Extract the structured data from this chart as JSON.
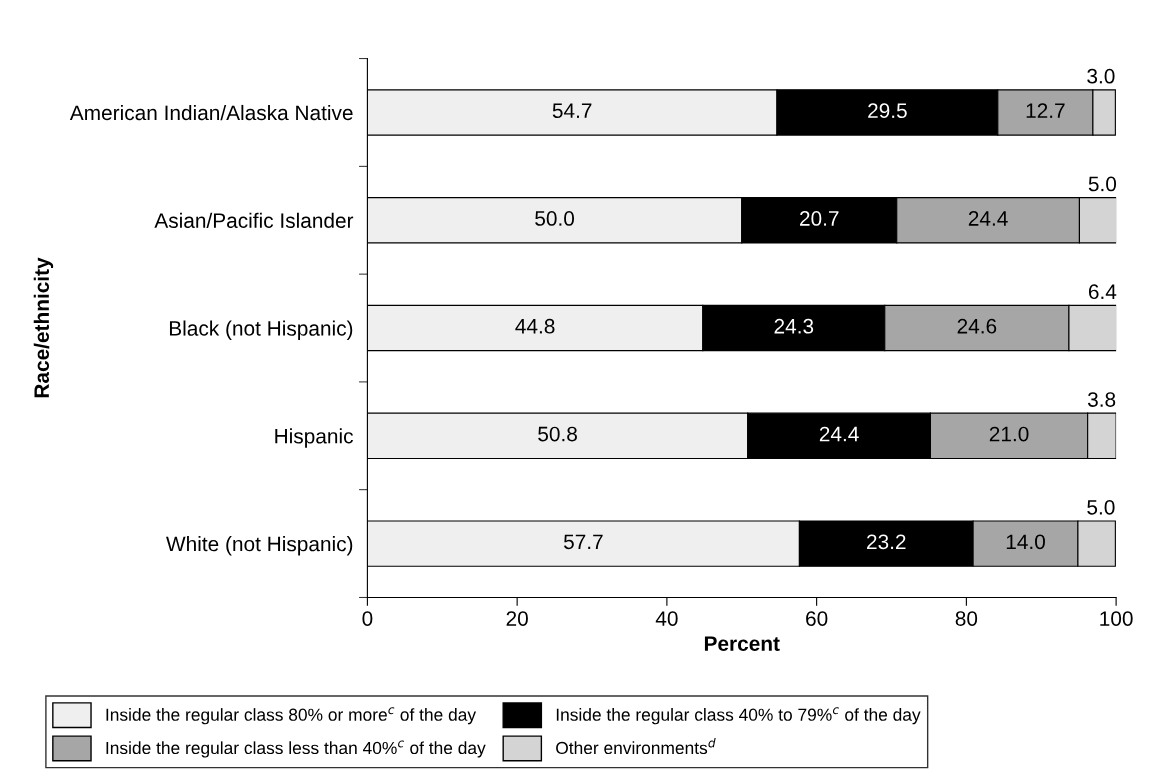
{
  "chart_data": {
    "type": "bar",
    "orientation": "horizontal",
    "stacked": true,
    "legend": "bottom",
    "xlabel": "Percent",
    "ylabel": "Race/ethnicity",
    "categories": [
      "American Indian/Alaska Native",
      "Asian/Pacific Islander",
      "Black (not Hispanic)",
      "Hispanic",
      "White (not Hispanic)"
    ],
    "xlim": [
      0,
      100
    ],
    "xticks": [
      0,
      20,
      40,
      60,
      80,
      100
    ],
    "grid": false,
    "series": [
      {
        "name": "Inside the regular class 80% or more$^{c}$ of the day",
        "color": "#efefef",
        "values": [
          54.7,
          50.0,
          44.8,
          50.8,
          57.7
        ],
        "value_labels": [
          "54.7",
          "50.0",
          "44.8",
          "50.8",
          "57.7"
        ]
      },
      {
        "name": "Inside the regular class 40% to 79%$^{c}$ of the day",
        "color": "#000000",
        "values": [
          29.5,
          20.7,
          24.3,
          24.4,
          23.2
        ],
        "value_labels": [
          "29.5",
          "20.7",
          "24.3",
          "24.4",
          "23.2"
        ]
      },
      {
        "name": "Inside the regular class less than 40%$^{c}$ of the day",
        "color": "#a6a6a6",
        "values": [
          12.7,
          24.4,
          24.6,
          21.0,
          14.0
        ],
        "value_labels": [
          "12.7",
          "24.4",
          "24.6",
          "21.0",
          "14.0"
        ]
      },
      {
        "name": "Other environments$^{d}$",
        "color": "#d4d4d4",
        "values": [
          3.0,
          5.0,
          6.4,
          3.8,
          5.0
        ],
        "value_labels": [
          "3.0",
          "5.0",
          "6.4",
          "3.8",
          "5.0"
        ]
      }
    ]
  }
}
